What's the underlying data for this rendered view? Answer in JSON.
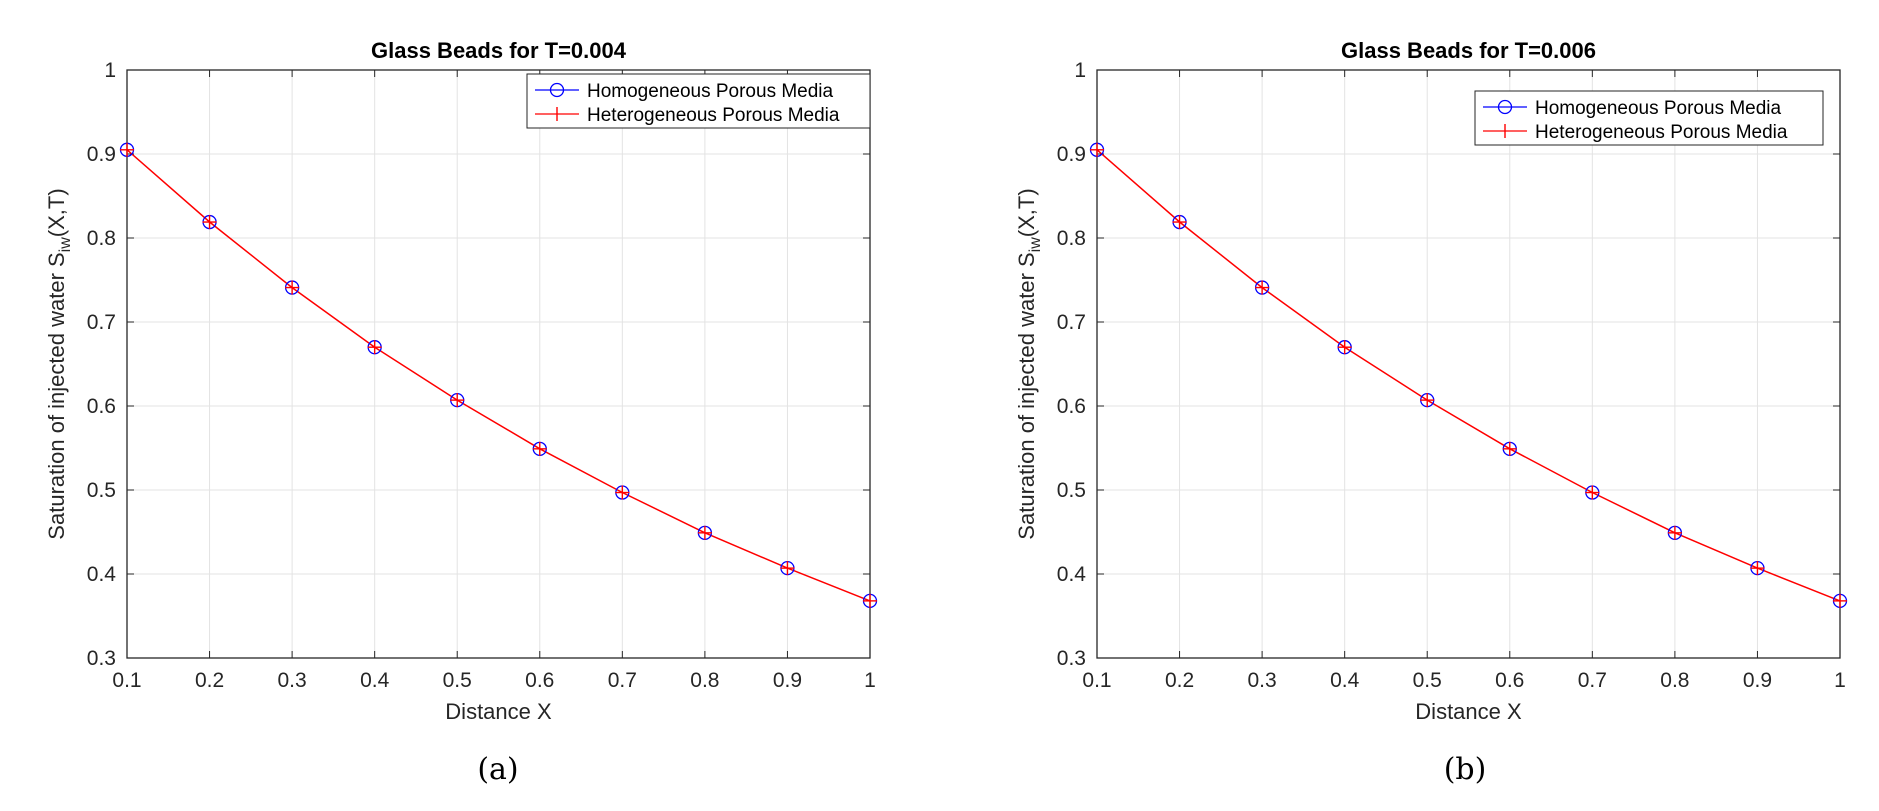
{
  "chart_data": [
    {
      "type": "line",
      "title": "Glass Beads for T=0.004",
      "xlabel": "Distance X",
      "ylabel": {
        "main": "Saturation of injected water S",
        "subscript": "iw",
        "suffix": "(X,T)"
      },
      "xlim": [
        0.1,
        1
      ],
      "ylim": [
        0.3,
        1
      ],
      "xticks": [
        "0.1",
        "0.2",
        "0.3",
        "0.4",
        "0.5",
        "0.6",
        "0.7",
        "0.8",
        "0.9",
        "1"
      ],
      "yticks": [
        "0.3",
        "0.4",
        "0.5",
        "0.6",
        "0.7",
        "0.8",
        "0.9",
        "1"
      ],
      "grid": true,
      "legend_position": "top-right",
      "x": [
        0.1,
        0.2,
        0.3,
        0.4,
        0.5,
        0.6,
        0.7,
        0.8,
        0.9,
        1.0
      ],
      "series": [
        {
          "name": "Homogeneous Porous Media",
          "color": "#0000ff",
          "marker": "circle",
          "values": [
            0.905,
            0.819,
            0.741,
            0.67,
            0.607,
            0.549,
            0.497,
            0.449,
            0.407,
            0.368
          ]
        },
        {
          "name": "Heterogeneous Porous Media",
          "color": "#ff0000",
          "marker": "plus",
          "values": [
            0.905,
            0.819,
            0.741,
            0.67,
            0.607,
            0.549,
            0.497,
            0.449,
            0.407,
            0.368
          ]
        }
      ],
      "caption": "(a)"
    },
    {
      "type": "line",
      "title": "Glass Beads for T=0.006",
      "xlabel": "Distance X",
      "ylabel": {
        "main": "Saturation of injected water S",
        "subscript": "iw",
        "suffix": "(X,T)"
      },
      "xlim": [
        0.1,
        1
      ],
      "ylim": [
        0.3,
        1
      ],
      "xticks": [
        "0.1",
        "0.2",
        "0.3",
        "0.4",
        "0.5",
        "0.6",
        "0.7",
        "0.8",
        "0.9",
        "1"
      ],
      "yticks": [
        "0.3",
        "0.4",
        "0.5",
        "0.6",
        "0.7",
        "0.8",
        "0.9",
        "1"
      ],
      "grid": true,
      "legend_position": "top-right",
      "x": [
        0.1,
        0.2,
        0.3,
        0.4,
        0.5,
        0.6,
        0.7,
        0.8,
        0.9,
        1.0
      ],
      "series": [
        {
          "name": "Homogeneous Porous Media",
          "color": "#0000ff",
          "marker": "circle",
          "values": [
            0.905,
            0.819,
            0.741,
            0.67,
            0.607,
            0.549,
            0.497,
            0.449,
            0.407,
            0.368
          ]
        },
        {
          "name": "Heterogeneous Porous Media",
          "color": "#ff0000",
          "marker": "plus",
          "values": [
            0.905,
            0.819,
            0.741,
            0.67,
            0.607,
            0.549,
            0.497,
            0.449,
            0.407,
            0.368
          ]
        }
      ],
      "caption": "(b)"
    }
  ]
}
